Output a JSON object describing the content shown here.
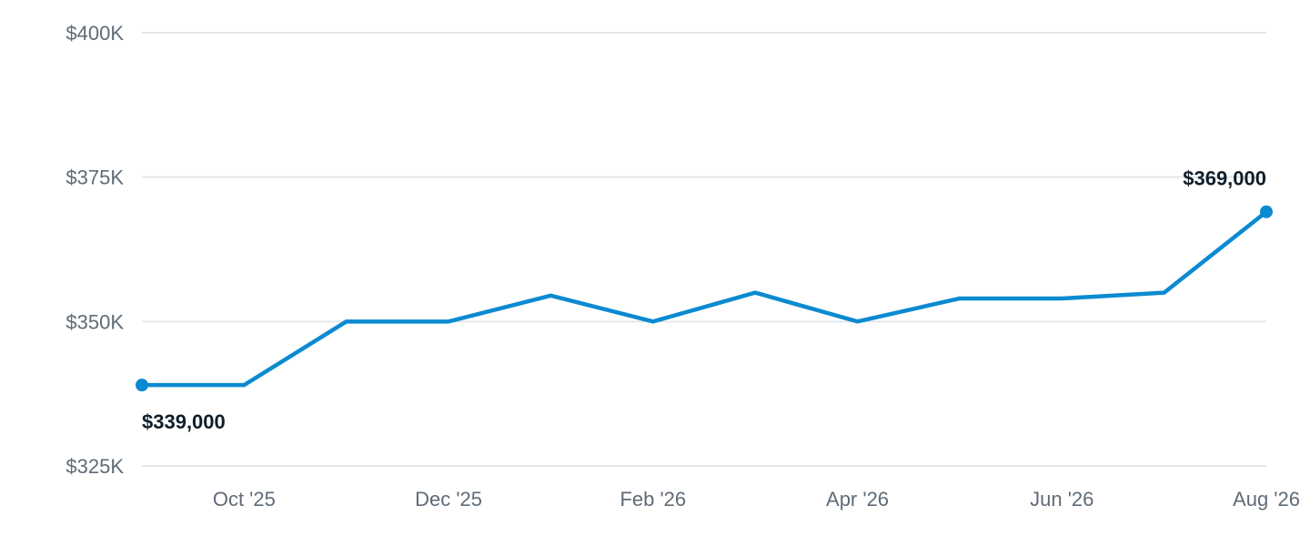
{
  "chart_data": {
    "type": "line",
    "title": "",
    "xlabel": "",
    "ylabel": "",
    "x": [
      "Sep '25",
      "Oct '25",
      "Nov '25",
      "Dec '25",
      "Jan '26",
      "Feb '26",
      "Mar '26",
      "Apr '26",
      "May '26",
      "Jun '26",
      "Jul '26",
      "Aug '26"
    ],
    "x_tick_labels": [
      "Oct '25",
      "Dec '25",
      "Feb '26",
      "Apr '26",
      "Jun '26",
      "Aug '26"
    ],
    "series": [
      {
        "values": [
          339000,
          339000,
          350000,
          350000,
          354500,
          350000,
          355000,
          350000,
          354000,
          354000,
          355000,
          369000
        ]
      }
    ],
    "ylim": [
      325000,
      400000
    ],
    "y_ticks": [
      325000,
      350000,
      375000,
      400000
    ],
    "y_tick_labels": [
      "$325K",
      "$350K",
      "$375K",
      "$400K"
    ],
    "annotations": {
      "start_label": "$339,000",
      "end_label": "$369,000"
    },
    "grid": true,
    "line_color": "#0b8ad0"
  }
}
